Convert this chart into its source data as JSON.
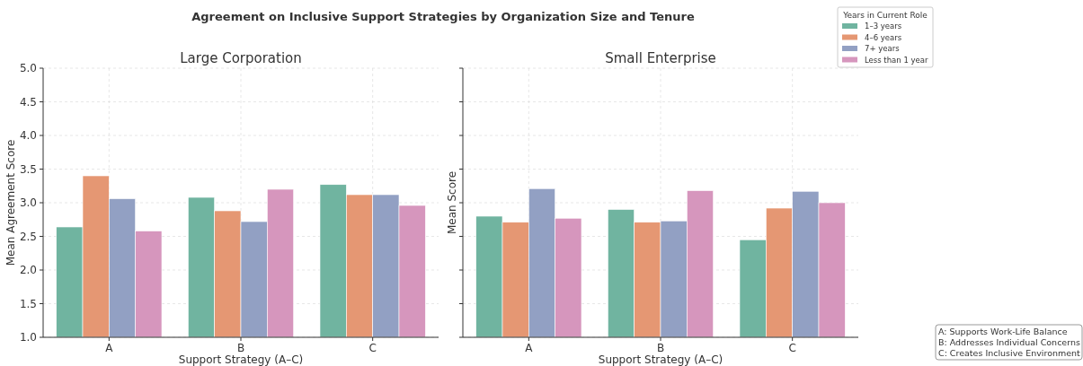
{
  "chart_data": [
    {
      "type": "bar",
      "title": "Agreement on Inclusive Support Strategies by Organization Size and Tenure",
      "subtitle": "Large Corporation",
      "xlabel": "Support Strategy (A–C)",
      "ylabel": "Mean Agreement Score",
      "categories": [
        "A",
        "B",
        "C"
      ],
      "series": [
        {
          "color": "#70b4a0",
          "values": [
            2.64,
            3.08,
            3.27
          ]
        },
        {
          "color": "#e59773",
          "values": [
            3.4,
            2.88,
            3.12
          ]
        },
        {
          "color": "#92a0c3",
          "values": [
            3.06,
            2.72,
            3.12
          ]
        },
        {
          "color": "#d696bd",
          "values": [
            2.58,
            3.2,
            2.96
          ]
        }
      ],
      "ylim": [
        1.0,
        5.0
      ],
      "yticks": [
        {
          "value": 1,
          "label": "1.0"
        },
        {
          "value": 1.5,
          "label": "1.5"
        },
        {
          "value": 2,
          "label": "2.0"
        },
        {
          "value": 2.5,
          "label": "2.5"
        },
        {
          "value": 3,
          "label": "3.0"
        },
        {
          "value": 3.5,
          "label": "3.5"
        },
        {
          "value": 4,
          "label": "4.0"
        },
        {
          "value": 4.5,
          "label": "4.5"
        },
        {
          "value": 5,
          "label": "5.0"
        }
      ],
      "grid": true
    },
    {
      "type": "bar",
      "subtitle": "Small Enterprise",
      "xlabel": "Support Strategy (A–C)",
      "ylabel": "Mean Score",
      "categories": [
        "A",
        "B",
        "C"
      ],
      "legend_title": "Years in Current Role",
      "legend": "top right",
      "series": [
        {
          "name": "1–3 years",
          "color": "#70b4a0",
          "values": [
            2.8,
            2.9,
            2.45
          ]
        },
        {
          "name": "4–6 years",
          "color": "#e59773",
          "values": [
            2.71,
            2.71,
            2.92
          ]
        },
        {
          "name": "7+ years",
          "color": "#92a0c3",
          "values": [
            3.21,
            2.73,
            3.17
          ]
        },
        {
          "name": "Less than 1 year",
          "color": "#d696bd",
          "values": [
            2.77,
            3.18,
            3.0
          ]
        }
      ],
      "ylim": [
        1.0,
        5.0
      ],
      "yticks": [
        {
          "value": 1,
          "label": null
        },
        {
          "value": 1.5,
          "label": null
        },
        {
          "value": 2,
          "label": null
        },
        {
          "value": 2.5,
          "label": null
        },
        {
          "value": 3,
          "label": null
        },
        {
          "value": 3.5,
          "label": null
        },
        {
          "value": 4,
          "label": null
        },
        {
          "value": 4.5,
          "label": null
        },
        {
          "value": 5,
          "label": null
        }
      ],
      "tick_labels": "x",
      "grid": true,
      "annotations": [
        "A: Supports Work-Life Balance",
        "B: Addresses Individual Concerns",
        "C: Creates Inclusive Environment"
      ]
    }
  ]
}
